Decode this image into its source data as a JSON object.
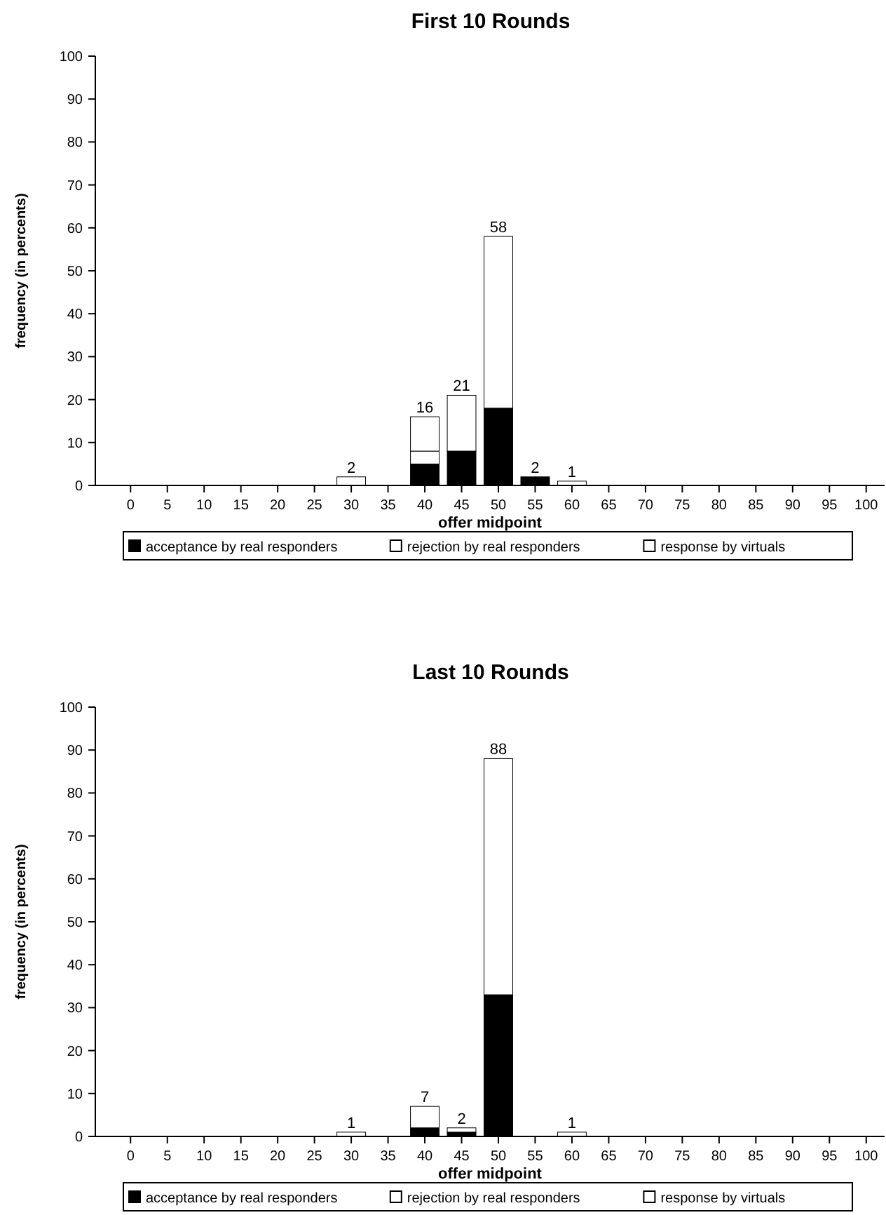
{
  "chart_data": [
    {
      "type": "bar",
      "title": "First 10 Rounds",
      "xlabel": "offer midpoint",
      "ylabel": "frequency (in percents)",
      "categories": [
        "0",
        "5",
        "10",
        "15",
        "20",
        "25",
        "30",
        "35",
        "40",
        "45",
        "50",
        "55",
        "60",
        "65",
        "70",
        "75",
        "80",
        "85",
        "90",
        "95",
        "100"
      ],
      "stacked": true,
      "ylim": [
        0,
        100
      ],
      "yticks": [
        0,
        10,
        20,
        30,
        40,
        50,
        60,
        70,
        80,
        90,
        100
      ],
      "grid": false,
      "legend": "bottom",
      "series": [
        {
          "name": "acceptance by real responders",
          "color": "#000000",
          "values": [
            0,
            0,
            0,
            0,
            0,
            0,
            0,
            0,
            5,
            8,
            18,
            2,
            0,
            0,
            0,
            0,
            0,
            0,
            0,
            0,
            0
          ]
        },
        {
          "name": "rejection by real responders",
          "color": "#ffffff",
          "values": [
            0,
            0,
            0,
            0,
            0,
            0,
            0,
            0,
            3,
            0,
            0,
            0,
            0,
            0,
            0,
            0,
            0,
            0,
            0,
            0,
            0
          ]
        },
        {
          "name": "response by virtuals",
          "color": "#ffffff",
          "values": [
            0,
            0,
            0,
            0,
            0,
            0,
            2,
            0,
            8,
            13,
            40,
            0,
            1,
            0,
            0,
            0,
            0,
            0,
            0,
            0,
            0
          ]
        }
      ],
      "totals": [
        null,
        null,
        null,
        null,
        null,
        null,
        "2",
        null,
        "16",
        "21",
        "58",
        "2",
        "1",
        null,
        null,
        null,
        null,
        null,
        null,
        null,
        null
      ]
    },
    {
      "type": "bar",
      "title": "Last 10 Rounds",
      "xlabel": "offer midpoint",
      "ylabel": "frequency (in percents)",
      "categories": [
        "0",
        "5",
        "10",
        "15",
        "20",
        "25",
        "30",
        "35",
        "40",
        "45",
        "50",
        "55",
        "60",
        "65",
        "70",
        "75",
        "80",
        "85",
        "90",
        "95",
        "100"
      ],
      "stacked": true,
      "ylim": [
        0,
        100
      ],
      "yticks": [
        0,
        10,
        20,
        30,
        40,
        50,
        60,
        70,
        80,
        90,
        100
      ],
      "grid": false,
      "legend": "bottom",
      "series": [
        {
          "name": "acceptance by real responders",
          "color": "#000000",
          "values": [
            0,
            0,
            0,
            0,
            0,
            0,
            0,
            0,
            2,
            1,
            33,
            0,
            0,
            0,
            0,
            0,
            0,
            0,
            0,
            0,
            0
          ]
        },
        {
          "name": "rejection by real responders",
          "color": "#ffffff",
          "values": [
            0,
            0,
            0,
            0,
            0,
            0,
            0,
            0,
            0,
            0,
            0,
            0,
            0,
            0,
            0,
            0,
            0,
            0,
            0,
            0,
            0
          ]
        },
        {
          "name": "response by virtuals",
          "color": "#ffffff",
          "values": [
            0,
            0,
            0,
            0,
            0,
            0,
            1,
            0,
            5,
            1,
            55,
            0,
            1,
            0,
            0,
            0,
            0,
            0,
            0,
            0,
            0
          ]
        }
      ],
      "totals": [
        null,
        null,
        null,
        null,
        null,
        null,
        "1",
        null,
        "7",
        "2",
        "88",
        null,
        "1",
        null,
        null,
        null,
        null,
        null,
        null,
        null,
        null
      ]
    }
  ]
}
